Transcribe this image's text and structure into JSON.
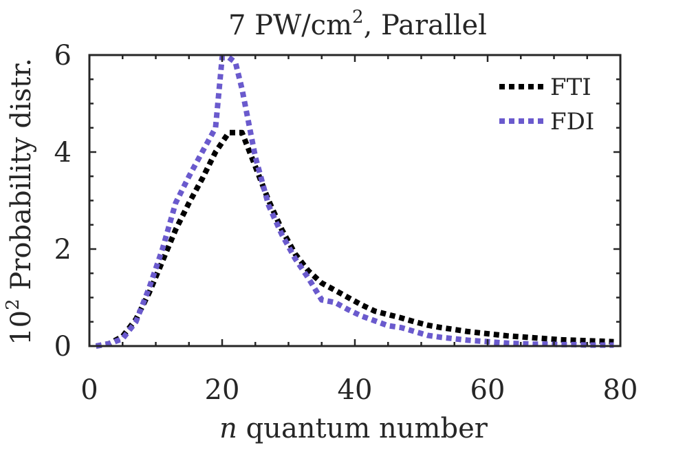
{
  "chart_data": {
    "type": "line",
    "title_main": "7 PW/cm",
    "title_sup": "2",
    "title_tail": ", Parallel",
    "xlabel_var": "n",
    "xlabel_rest": "quantum number",
    "ylabel_base": "10",
    "ylabel_sup": "2",
    "ylabel_rest": "Probability distr.",
    "xlim": [
      0,
      80
    ],
    "ylim": [
      0,
      6
    ],
    "xticks": [
      0,
      20,
      40,
      60,
      80
    ],
    "yticks": [
      0,
      2,
      4,
      6
    ],
    "xtick_labels": [
      "0",
      "20",
      "40",
      "60",
      "80"
    ],
    "ytick_labels": [
      "0",
      "2",
      "4",
      "6"
    ],
    "legend_position": "top-right",
    "series": [
      {
        "name": "FTI",
        "color": "#000000",
        "x": [
          1,
          3,
          5,
          7,
          9,
          11,
          13,
          15,
          17,
          19,
          21,
          23,
          25,
          27,
          29,
          31,
          33,
          35,
          37,
          39,
          41,
          43,
          45,
          47,
          49,
          51,
          53,
          55,
          57,
          59,
          61,
          63,
          65,
          67,
          69,
          71,
          73,
          75,
          77,
          79
        ],
        "y": [
          0.0,
          0.05,
          0.2,
          0.55,
          1.1,
          1.75,
          2.4,
          2.95,
          3.45,
          4.0,
          4.4,
          4.4,
          3.7,
          3.0,
          2.4,
          1.9,
          1.55,
          1.3,
          1.15,
          1.0,
          0.85,
          0.72,
          0.65,
          0.58,
          0.5,
          0.43,
          0.38,
          0.34,
          0.3,
          0.27,
          0.24,
          0.21,
          0.19,
          0.17,
          0.15,
          0.13,
          0.12,
          0.11,
          0.1,
          0.09
        ]
      },
      {
        "name": "FDI",
        "color": "#6a5acd",
        "x": [
          1,
          3,
          5,
          7,
          9,
          11,
          13,
          15,
          17,
          19,
          20,
          21,
          22,
          23,
          25,
          27,
          29,
          31,
          33,
          35,
          37,
          39,
          41,
          43,
          45,
          47,
          49,
          51,
          53,
          55,
          57,
          59,
          61,
          63,
          65,
          67,
          69,
          71,
          73,
          75,
          77,
          79
        ],
        "y": [
          0.0,
          0.05,
          0.15,
          0.5,
          1.2,
          2.0,
          2.95,
          3.5,
          4.0,
          4.5,
          5.95,
          5.95,
          5.85,
          5.3,
          3.9,
          2.9,
          2.3,
          1.8,
          1.4,
          0.95,
          0.9,
          0.75,
          0.62,
          0.52,
          0.42,
          0.38,
          0.3,
          0.22,
          0.18,
          0.15,
          0.12,
          0.1,
          0.08,
          0.06,
          0.05,
          0.04,
          0.04,
          0.03,
          0.03,
          0.02,
          0.02,
          0.02
        ]
      }
    ]
  }
}
